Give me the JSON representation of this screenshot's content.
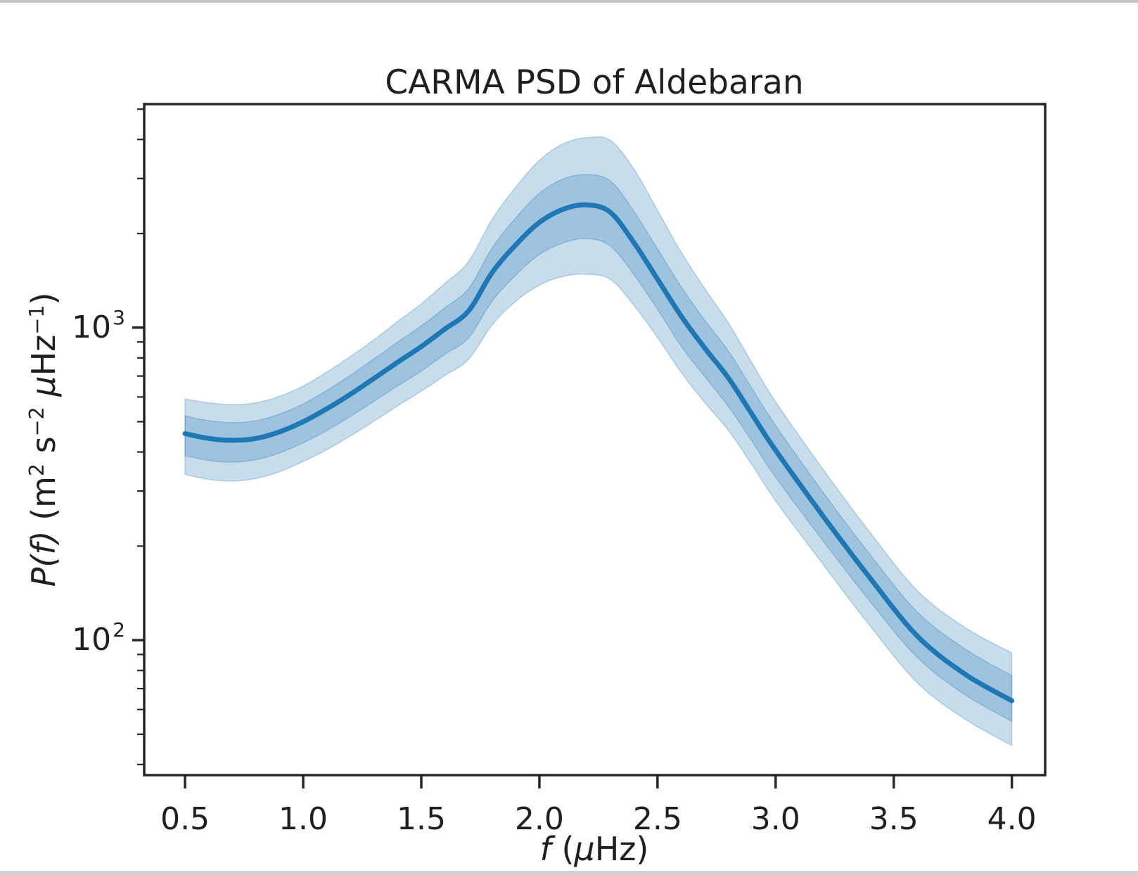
{
  "window": {
    "top_strip_color": "#c5c5c5",
    "bottom_strip_color": "#ccd1d4",
    "background_color": "#ffffff"
  },
  "chart": {
    "title": "CARMA PSD of Aldebaran",
    "xlabel_parts": {
      "f": "f",
      "open": " (",
      "mu": "μ",
      "rest": "Hz)"
    },
    "ylabel_parts": {
      "pf": "P(f)",
      "m": " (m",
      "m_exp": "2",
      "s": " s",
      "s_exp": "−2",
      "mu": " μ",
      "hz": "Hz",
      "hz_exp": "−1",
      "close": ")"
    }
  },
  "chart_data": {
    "type": "line",
    "title": "CARMA PSD of Aldebaran",
    "xlabel": "f (μHz)",
    "ylabel": "P(f) (m² s⁻² μHz⁻¹)",
    "x_scale": "linear",
    "y_scale": "log",
    "xlim": [
      0.327,
      4.141
    ],
    "ylim": [
      37,
      5190
    ],
    "grid": false,
    "legend": "none",
    "x_ticks": [
      0.5,
      1.0,
      1.5,
      2.0,
      2.5,
      3.0,
      3.5,
      4.0
    ],
    "x_tick_labels": [
      "0.5",
      "1.0",
      "1.5",
      "2.0",
      "2.5",
      "3.0",
      "3.5",
      "4.0"
    ],
    "y_ticks": [
      100,
      1000
    ],
    "y_tick_labels": [
      {
        "base": "10",
        "exp": "2"
      },
      {
        "base": "10",
        "exp": "3"
      }
    ],
    "line_color": "#1f77b4",
    "band_color": "#1f77b4",
    "band_alpha": 0.25,
    "frame_color": "#262626",
    "tick_color": "#262626",
    "series": [
      {
        "name": "median PSD"
      },
      {
        "name": "1-sigma credible band"
      },
      {
        "name": "2-sigma credible band"
      }
    ],
    "x": [
      0.5,
      0.6,
      0.7,
      0.8,
      0.9,
      1.0,
      1.1,
      1.2,
      1.3,
      1.4,
      1.5,
      1.6,
      1.7,
      1.8,
      1.9,
      2.0,
      2.1,
      2.2,
      2.3,
      2.4,
      2.5,
      2.6,
      2.7,
      2.8,
      2.9,
      3.0,
      3.2,
      3.4,
      3.6,
      3.8,
      4.0
    ],
    "median": [
      458,
      442,
      436,
      442,
      464,
      500,
      550,
      612,
      688,
      775,
      870,
      990,
      1130,
      1500,
      1840,
      2170,
      2390,
      2470,
      2340,
      1870,
      1430,
      1090,
      860,
      690,
      528,
      405,
      250,
      158,
      103,
      78,
      64
    ],
    "band1_low": [
      389,
      376,
      371,
      378,
      397,
      428,
      468,
      520,
      581,
      651,
      726,
      822,
      927,
      1215,
      1472,
      1714,
      1864,
      1927,
      1825,
      1477,
      1144,
      872,
      697,
      559,
      433,
      332,
      208,
      133,
      88,
      67,
      55
    ],
    "band1_high": [
      522,
      504,
      497,
      504,
      529,
      570,
      630,
      704,
      795,
      899,
      1014,
      1158,
      1333,
      1800,
      2245,
      2691,
      2988,
      3088,
      2948,
      2356,
      1788,
      1352,
      1058,
      842,
      639,
      486,
      298,
      188,
      123,
      94,
      77
    ],
    "band2_low": [
      339,
      327,
      323,
      329,
      346,
      373,
      407,
      450,
      502,
      562,
      626,
      703,
      791,
      1020,
      1214,
      1367,
      1458,
      1482,
      1427,
      1178,
      930,
      719,
      576,
      469,
      364,
      279,
      175,
      111,
      73,
      56,
      46
    ],
    "band2_high": [
      591,
      575,
      567,
      575,
      603,
      650,
      721,
      808,
      915,
      1046,
      1192,
      1386,
      1627,
      2220,
      2815,
      3429,
      3872,
      4051,
      3978,
      3216,
      2374,
      1744,
      1333,
      1035,
      771,
      579,
      353,
      221,
      144,
      110,
      91
    ]
  }
}
